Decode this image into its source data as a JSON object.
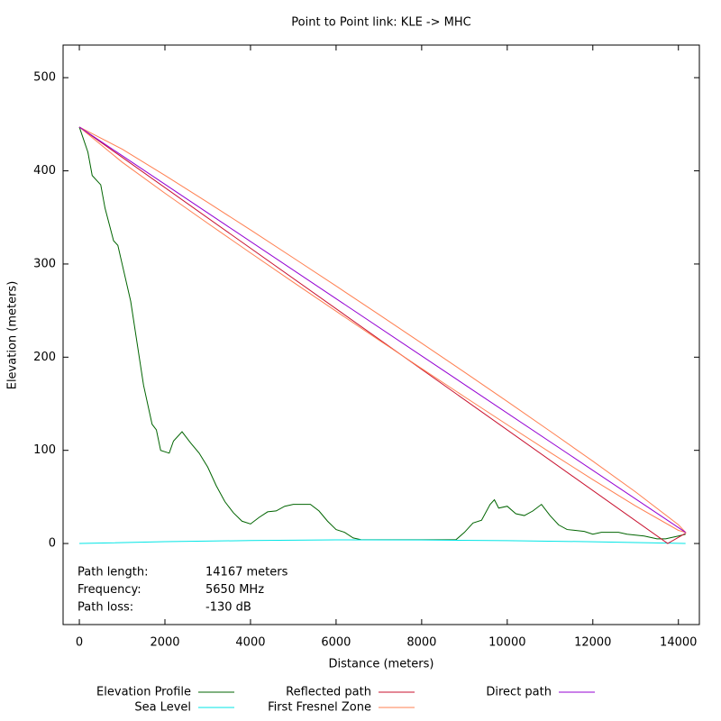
{
  "chart_data": {
    "type": "line",
    "title": "Point to Point link: KLE -> MHC",
    "xlabel": "Distance (meters)",
    "ylabel": "Elevation (meters)",
    "xlim": [
      -380,
      14490
    ],
    "ylim": [
      -87,
      535
    ],
    "xticks": [
      0,
      2000,
      4000,
      6000,
      8000,
      10000,
      12000,
      14000
    ],
    "yticks": [
      0,
      100,
      200,
      300,
      400,
      500
    ],
    "annotations": [
      {
        "label": "Path length:",
        "value": "14167 meters"
      },
      {
        "label": "Frequency:",
        "value": "5650 MHz"
      },
      {
        "label": "Path loss:",
        "value": "-130 dB"
      }
    ],
    "series": [
      {
        "name": "Elevation Profile",
        "color": "#006400",
        "x": [
          0,
          200,
          300,
          500,
          600,
          800,
          900,
          1000,
          1200,
          1400,
          1500,
          1700,
          1800,
          1900,
          2100,
          2200,
          2400,
          2600,
          2800,
          3000,
          3200,
          3400,
          3600,
          3800,
          4000,
          4200,
          4400,
          4600,
          4800,
          5000,
          5400,
          5600,
          5800,
          6000,
          6200,
          6400,
          6600,
          7000,
          8800,
          9000,
          9200,
          9400,
          9600,
          9700,
          9800,
          10000,
          10200,
          10400,
          10600,
          10800,
          11000,
          11200,
          11400,
          11800,
          12000,
          12200,
          12600,
          12800,
          13200,
          13500,
          13700,
          14000,
          14167
        ],
        "values": [
          447,
          420,
          395,
          385,
          360,
          325,
          320,
          300,
          260,
          200,
          170,
          128,
          122,
          100,
          97,
          110,
          120,
          108,
          97,
          82,
          62,
          45,
          33,
          24,
          21,
          28,
          34,
          35,
          40,
          42,
          42,
          35,
          24,
          15,
          12,
          6,
          4,
          4,
          4,
          12,
          22,
          25,
          42,
          47,
          38,
          40,
          32,
          30,
          35,
          42,
          30,
          20,
          15,
          13,
          10,
          12,
          12,
          10,
          8,
          5,
          5,
          8,
          10
        ]
      },
      {
        "name": "Sea Level",
        "color": "#00e5e5",
        "x": [
          0,
          2000,
          4000,
          6000,
          8000,
          10000,
          12000,
          14167
        ],
        "values": [
          0,
          2,
          3.2,
          3.9,
          3.8,
          3.1,
          1.9,
          0
        ]
      },
      {
        "name": "Reflected path",
        "color": "#c8102e",
        "x": [
          0,
          13750,
          14167
        ],
        "values": [
          447,
          0,
          11
        ]
      },
      {
        "name": "First Fresnel Zone",
        "color": "#ff7f50",
        "x": [
          0,
          1000,
          2000,
          3000,
          4000,
          5000,
          6000,
          7000,
          8000,
          9000,
          10000,
          11000,
          12000,
          13000,
          14000,
          14167,
          14000,
          13000,
          12000,
          11000,
          10000,
          9000,
          8000,
          7000,
          6000,
          5000,
          4000,
          3000,
          2000,
          1000,
          0
        ],
        "values": [
          447,
          423.3,
          395.2,
          366.1,
          336.6,
          306.6,
          276.4,
          245.8,
          215,
          183.9,
          152.5,
          120.6,
          88.4,
          55.3,
          20.1,
          12,
          14.1,
          40.3,
          68.6,
          97.8,
          127.5,
          157.5,
          187.8,
          218.4,
          249.3,
          280.4,
          311.9,
          343.7,
          376,
          409.3,
          447
        ]
      },
      {
        "name": "Direct path",
        "color": "#9400d3",
        "x": [
          0,
          14167
        ],
        "values": [
          447,
          12
        ]
      }
    ]
  }
}
